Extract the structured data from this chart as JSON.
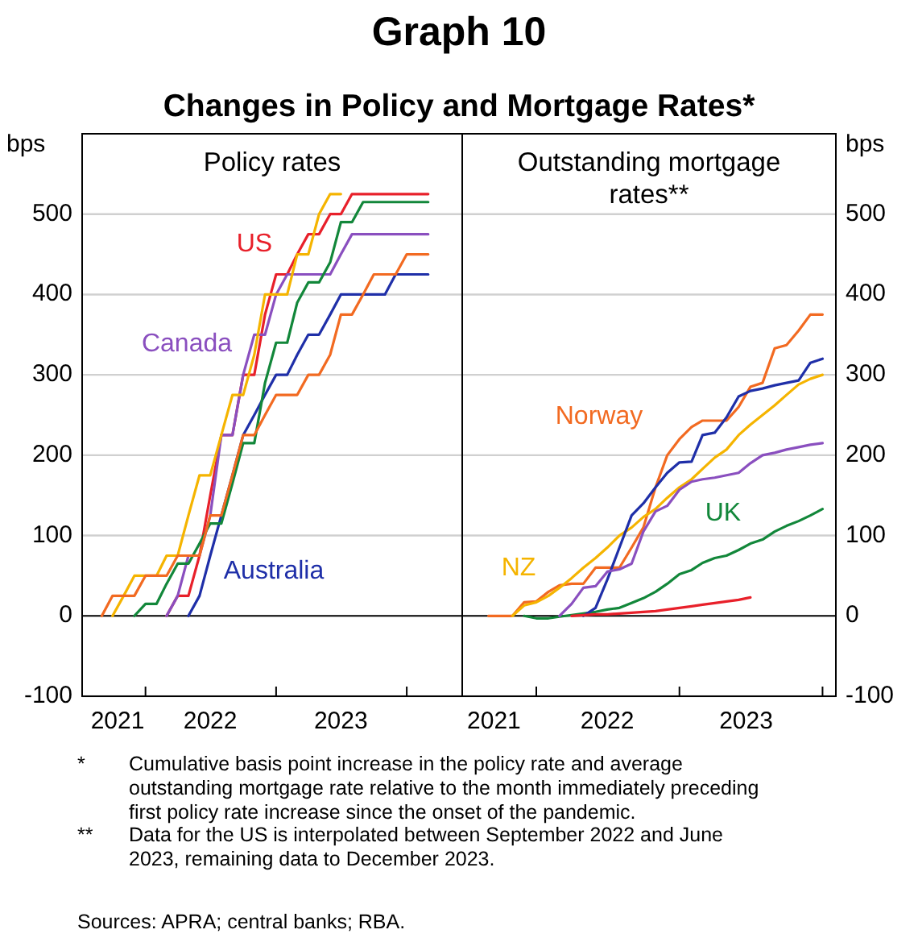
{
  "chart_data": [
    {
      "type": "line",
      "title": "Policy rates",
      "ylabel": "bps",
      "annotations": [
        "Graph 10",
        "Changes in Policy and Mortgage Rates*"
      ],
      "x": [
        "2021-09",
        "2021-10",
        "2021-11",
        "2021-12",
        "2022-01",
        "2022-02",
        "2022-03",
        "2022-04",
        "2022-05",
        "2022-06",
        "2022-07",
        "2022-08",
        "2022-09",
        "2022-10",
        "2022-11",
        "2022-12",
        "2023-01",
        "2023-02",
        "2023-03",
        "2023-04",
        "2023-05",
        "2023-06",
        "2023-07",
        "2023-08",
        "2023-09",
        "2023-10",
        "2023-11",
        "2023-12",
        "2024-01",
        "2024-02",
        "2024-03"
      ],
      "series": [
        {
          "name": "US",
          "color": "#e8202a",
          "values": [
            null,
            null,
            null,
            null,
            null,
            null,
            0,
            25,
            25,
            75,
            150,
            225,
            225,
            300,
            300,
            375,
            425,
            425,
            450,
            475,
            475,
            500,
            500,
            525,
            525,
            525,
            525,
            525,
            525,
            525,
            525
          ]
        },
        {
          "name": "Canada",
          "color": "#8a4fbf",
          "values": [
            null,
            null,
            null,
            null,
            null,
            null,
            0,
            25,
            75,
            75,
            125,
            225,
            225,
            300,
            350,
            350,
            400,
            425,
            425,
            425,
            425,
            425,
            450,
            475,
            475,
            475,
            475,
            475,
            475,
            475,
            475
          ]
        },
        {
          "name": "Australia",
          "color": "#1f2fa8",
          "values": [
            null,
            null,
            null,
            null,
            null,
            null,
            null,
            null,
            0,
            25,
            75,
            125,
            175,
            225,
            250,
            275,
            300,
            300,
            325,
            350,
            350,
            375,
            400,
            400,
            400,
            400,
            400,
            425,
            425,
            425,
            425
          ]
        },
        {
          "color": "#f5b400",
          "values": [
            null,
            0,
            25,
            50,
            50,
            50,
            75,
            75,
            125,
            175,
            175,
            225,
            275,
            275,
            325,
            400,
            400,
            400,
            450,
            450,
            500,
            525,
            525,
            null,
            null,
            null,
            null,
            null,
            null,
            null,
            null
          ]
        },
        {
          "color": "#12873a",
          "values": [
            null,
            null,
            null,
            0,
            15,
            15,
            40,
            65,
            65,
            90,
            115,
            115,
            165,
            215,
            215,
            290,
            340,
            340,
            390,
            415,
            415,
            440,
            490,
            490,
            515,
            515,
            515,
            515,
            515,
            515,
            515
          ]
        },
        {
          "color": "#f26a21",
          "values": [
            0,
            25,
            25,
            25,
            50,
            50,
            50,
            75,
            75,
            75,
            125,
            125,
            175,
            225,
            225,
            250,
            275,
            275,
            275,
            300,
            300,
            325,
            375,
            375,
            400,
            425,
            425,
            425,
            450,
            450,
            450
          ]
        }
      ],
      "xlim": [
        "2021-07-08",
        "2024-06-04"
      ],
      "xticks": [
        {
          "value": "2021-10-15",
          "label": "2021"
        },
        {
          "value": "2022-01",
          "label": null
        },
        {
          "value": "2022-07",
          "label": "2022"
        },
        {
          "value": "2023-01",
          "label": null
        },
        {
          "value": "2023-07",
          "label": "2023"
        },
        {
          "value": "2024-01",
          "label": null
        }
      ],
      "ylim": [
        -100,
        600
      ],
      "yticks": [
        -100,
        0,
        100,
        200,
        300,
        400,
        500
      ],
      "grid": "y"
    },
    {
      "type": "line",
      "title": "Outstanding mortgage rates**",
      "ylabel": "bps",
      "annotations": [
        "* Cumulative basis point increase in the policy rate and average outstanding mortgage rate relative to the month immediately preceding first policy rate increase since the onset of the pandemic.",
        "** Data for the US is interpolated between September 2022 and June 2023, remaining data to December 2023.",
        "Sources: APRA; central banks; RBA."
      ],
      "x": [
        "2021-09",
        "2021-10",
        "2021-11",
        "2021-12",
        "2022-01",
        "2022-02",
        "2022-03",
        "2022-04",
        "2022-05",
        "2022-06",
        "2022-07",
        "2022-08",
        "2022-09",
        "2022-10",
        "2022-11",
        "2022-12",
        "2023-01",
        "2023-02",
        "2023-03",
        "2023-04",
        "2023-05",
        "2023-06",
        "2023-07",
        "2023-08",
        "2023-09",
        "2023-10",
        "2023-11",
        "2023-12",
        "2024-01"
      ],
      "series": [
        {
          "name": "Norway",
          "color": "#f26a21",
          "values": [
            0,
            0,
            0,
            17,
            18,
            30,
            38,
            40,
            40,
            60,
            60,
            60,
            85,
            110,
            160,
            200,
            220,
            235,
            243,
            243,
            243,
            260,
            285,
            290,
            333,
            337,
            355,
            375,
            375
          ]
        },
        {
          "name": "UK",
          "color": "#12873a",
          "values": [
            null,
            null,
            null,
            0,
            -3,
            -3,
            -1,
            1,
            3,
            5,
            8,
            10,
            16,
            22,
            30,
            40,
            52,
            57,
            66,
            72,
            75,
            82,
            90,
            95,
            105,
            112,
            118,
            125,
            133
          ]
        },
        {
          "name": "NZ",
          "color": "#f5b400",
          "values": [
            null,
            null,
            0,
            13,
            17,
            25,
            35,
            47,
            60,
            72,
            85,
            100,
            110,
            123,
            133,
            147,
            160,
            170,
            183,
            197,
            207,
            225,
            238,
            250,
            262,
            275,
            288,
            295,
            300
          ]
        },
        {
          "color": "#1f2fa8",
          "values": [
            null,
            null,
            null,
            null,
            null,
            null,
            null,
            null,
            0,
            10,
            45,
            85,
            125,
            140,
            160,
            178,
            191,
            192,
            225,
            228,
            247,
            273,
            280,
            283,
            287,
            290,
            293,
            315,
            320
          ]
        },
        {
          "color": "#8a4fbf",
          "values": [
            null,
            null,
            null,
            null,
            null,
            null,
            0,
            15,
            35,
            37,
            55,
            58,
            65,
            105,
            130,
            137,
            157,
            167,
            170,
            172,
            175,
            178,
            190,
            200,
            203,
            207,
            210,
            213,
            215
          ]
        },
        {
          "color": "#e8202a",
          "values": [
            null,
            null,
            null,
            null,
            null,
            null,
            null,
            0,
            1,
            2,
            2,
            3,
            4,
            5,
            6,
            8,
            10,
            12,
            14,
            16,
            18,
            20,
            23,
            null,
            null,
            null,
            null,
            null,
            null
          ]
        }
      ],
      "xlim": [
        "2021-06-26",
        "2024-02-04"
      ],
      "xticks": [
        {
          "value": "2021-09-15",
          "label": "2021"
        },
        {
          "value": "2022-01",
          "label": null
        },
        {
          "value": "2022-07",
          "label": "2022"
        },
        {
          "value": "2023-01",
          "label": null
        },
        {
          "value": "2023-06-20",
          "label": "2023"
        },
        {
          "value": "2024-01",
          "label": null
        }
      ],
      "ylim": [
        -100,
        600
      ],
      "yticks": [
        -100,
        0,
        100,
        200,
        300,
        400,
        500
      ],
      "grid": "y"
    }
  ]
}
